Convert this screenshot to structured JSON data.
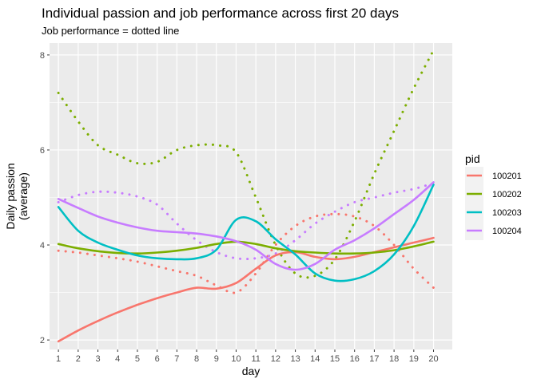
{
  "chart_data": {
    "type": "line",
    "title": "Individual passion and job performance across first 20 days",
    "subtitle": "Job performance = dotted line",
    "xlabel": "day",
    "ylabel_lines": [
      "Daily passion",
      "(average)"
    ],
    "x": [
      1,
      2,
      3,
      4,
      5,
      6,
      7,
      8,
      9,
      10,
      11,
      12,
      13,
      14,
      15,
      16,
      17,
      18,
      19,
      20
    ],
    "x_ticks": [
      "1",
      "2",
      "3",
      "4",
      "5",
      "6",
      "7",
      "8",
      "9",
      "10",
      "11",
      "12",
      "13",
      "14",
      "15",
      "16",
      "17",
      "18",
      "19",
      "20"
    ],
    "y_ticks": [
      2,
      4,
      6,
      8
    ],
    "y_tick_labels": [
      "2",
      "4",
      "6",
      "8"
    ],
    "xlim": [
      0.55,
      20.95
    ],
    "ylim": [
      1.8,
      8.25
    ],
    "grid": true,
    "legend": {
      "title": "pid",
      "placement": "right"
    },
    "series": [
      {
        "name": "100201",
        "color": "#F8766D",
        "passion": [
          1.97,
          2.2,
          2.4,
          2.58,
          2.74,
          2.88,
          3.0,
          3.1,
          3.08,
          3.2,
          3.5,
          3.78,
          3.85,
          3.75,
          3.7,
          3.75,
          3.85,
          3.95,
          4.05,
          4.15
        ],
        "performance": [
          3.88,
          3.84,
          3.78,
          3.72,
          3.65,
          3.55,
          3.45,
          3.35,
          3.15,
          3.0,
          3.4,
          4.0,
          4.4,
          4.6,
          4.65,
          4.6,
          4.4,
          4.0,
          3.5,
          3.1
        ]
      },
      {
        "name": "100202",
        "color": "#7CAE00",
        "passion": [
          4.02,
          3.93,
          3.87,
          3.83,
          3.82,
          3.84,
          3.88,
          3.94,
          4.02,
          4.07,
          4.02,
          3.93,
          3.87,
          3.84,
          3.82,
          3.82,
          3.84,
          3.89,
          3.97,
          4.07
        ],
        "performance": [
          7.2,
          6.6,
          6.1,
          5.9,
          5.72,
          5.75,
          6.0,
          6.1,
          6.1,
          5.95,
          5.0,
          4.0,
          3.4,
          3.35,
          3.7,
          4.5,
          5.5,
          6.4,
          7.3,
          8.1
        ]
      },
      {
        "name": "100203",
        "color": "#00BFC4",
        "passion": [
          4.8,
          4.3,
          4.05,
          3.9,
          3.78,
          3.72,
          3.7,
          3.72,
          3.9,
          4.53,
          4.5,
          4.12,
          3.8,
          3.4,
          3.25,
          3.28,
          3.45,
          3.8,
          4.4,
          5.27
        ]
      },
      {
        "name": "100204",
        "color": "#C77CFF",
        "passion": [
          4.97,
          4.78,
          4.6,
          4.47,
          4.37,
          4.3,
          4.27,
          4.24,
          4.18,
          4.08,
          3.9,
          3.6,
          3.48,
          3.6,
          3.9,
          4.1,
          4.35,
          4.65,
          4.95,
          5.32
        ],
        "performance": [
          4.9,
          5.05,
          5.12,
          5.1,
          5.02,
          4.85,
          4.45,
          4.1,
          3.85,
          3.72,
          3.72,
          3.82,
          4.1,
          4.45,
          4.7,
          4.9,
          5.0,
          5.1,
          5.18,
          5.3
        ]
      }
    ]
  }
}
